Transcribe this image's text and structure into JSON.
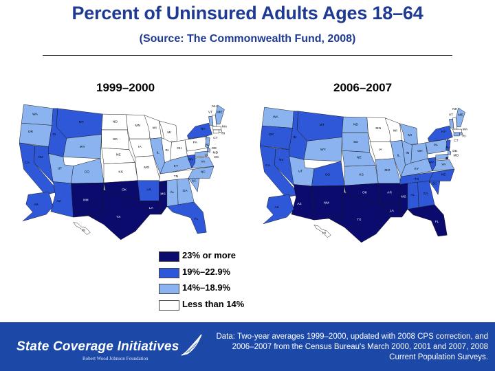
{
  "title": "Percent of Uninsured Adults Ages 18–64",
  "subtitle": "(Source: The Commonwealth Fund, 2008)",
  "periods": [
    {
      "label": "1999–2000"
    },
    {
      "label": "2006–2007"
    }
  ],
  "legend": [
    {
      "label": "23% or more",
      "color": "#0b0b6e"
    },
    {
      "label": "19%–22.9%",
      "color": "#2f58d8"
    },
    {
      "label": "14%–18.9%",
      "color": "#8ab3f0"
    },
    {
      "label": "Less than 14%",
      "color": "#ffffff"
    }
  ],
  "footer": {
    "brand": "State Coverage Initiatives",
    "brand_sub": "Robert Wood Johnson Foundation",
    "note": "Data: Two-year averages 1999–2000, updated with 2008 CPS correction, and 2006–2007 from the Census Bureau's March 2000, 2001 and 2007, 2008 Current Population Surveys."
  },
  "maps": [
    {
      "name": "1999–2000",
      "states": [
        {
          "abbr": "WA",
          "tier": "light"
        },
        {
          "abbr": "OR",
          "tier": "light"
        },
        {
          "abbr": "CA",
          "tier": "mid"
        },
        {
          "abbr": "NV",
          "tier": "mid"
        },
        {
          "abbr": "ID",
          "tier": "mid"
        },
        {
          "abbr": "MT",
          "tier": "mid"
        },
        {
          "abbr": "WY",
          "tier": "light"
        },
        {
          "abbr": "UT",
          "tier": "light"
        },
        {
          "abbr": "CO",
          "tier": "light"
        },
        {
          "abbr": "AZ",
          "tier": "mid"
        },
        {
          "abbr": "NM",
          "tier": "dark"
        },
        {
          "abbr": "ND",
          "tier": "white"
        },
        {
          "abbr": "SD",
          "tier": "white"
        },
        {
          "abbr": "NE",
          "tier": "white"
        },
        {
          "abbr": "KS",
          "tier": "white"
        },
        {
          "abbr": "OK",
          "tier": "dark"
        },
        {
          "abbr": "TX",
          "tier": "dark"
        },
        {
          "abbr": "MN",
          "tier": "white"
        },
        {
          "abbr": "IA",
          "tier": "white"
        },
        {
          "abbr": "MO",
          "tier": "white"
        },
        {
          "abbr": "AR",
          "tier": "mid"
        },
        {
          "abbr": "LA",
          "tier": "dark"
        },
        {
          "abbr": "WI",
          "tier": "white"
        },
        {
          "abbr": "IL",
          "tier": "light"
        },
        {
          "abbr": "MI",
          "tier": "white"
        },
        {
          "abbr": "IN",
          "tier": "white"
        },
        {
          "abbr": "OH",
          "tier": "white"
        },
        {
          "abbr": "KY",
          "tier": "light"
        },
        {
          "abbr": "TN",
          "tier": "white"
        },
        {
          "abbr": "MS",
          "tier": "dark"
        },
        {
          "abbr": "AL",
          "tier": "light"
        },
        {
          "abbr": "GA",
          "tier": "light"
        },
        {
          "abbr": "FL",
          "tier": "mid"
        },
        {
          "abbr": "SC",
          "tier": "light"
        },
        {
          "abbr": "NC",
          "tier": "light"
        },
        {
          "abbr": "VA",
          "tier": "light"
        },
        {
          "abbr": "WV",
          "tier": "mid"
        },
        {
          "abbr": "PA",
          "tier": "white"
        },
        {
          "abbr": "NY",
          "tier": "mid"
        },
        {
          "abbr": "VT",
          "tier": "light"
        },
        {
          "abbr": "NH",
          "tier": "white"
        },
        {
          "abbr": "ME",
          "tier": "light"
        },
        {
          "abbr": "MA",
          "tier": "white"
        },
        {
          "abbr": "RI",
          "tier": "white"
        },
        {
          "abbr": "CT",
          "tier": "white"
        },
        {
          "abbr": "NJ",
          "tier": "light"
        },
        {
          "abbr": "DE",
          "tier": "light"
        },
        {
          "abbr": "MD",
          "tier": "light"
        },
        {
          "abbr": "DC",
          "tier": "light"
        },
        {
          "abbr": "AK",
          "tier": "mid"
        },
        {
          "abbr": "HI",
          "tier": "white"
        }
      ]
    },
    {
      "name": "2006–2007",
      "states": [
        {
          "abbr": "WA",
          "tier": "light"
        },
        {
          "abbr": "OR",
          "tier": "mid"
        },
        {
          "abbr": "CA",
          "tier": "mid"
        },
        {
          "abbr": "NV",
          "tier": "mid"
        },
        {
          "abbr": "ID",
          "tier": "mid"
        },
        {
          "abbr": "MT",
          "tier": "mid"
        },
        {
          "abbr": "WY",
          "tier": "light"
        },
        {
          "abbr": "UT",
          "tier": "light"
        },
        {
          "abbr": "CO",
          "tier": "mid"
        },
        {
          "abbr": "AZ",
          "tier": "dark"
        },
        {
          "abbr": "NM",
          "tier": "dark"
        },
        {
          "abbr": "ND",
          "tier": "light"
        },
        {
          "abbr": "SD",
          "tier": "light"
        },
        {
          "abbr": "NE",
          "tier": "light"
        },
        {
          "abbr": "KS",
          "tier": "light"
        },
        {
          "abbr": "OK",
          "tier": "dark"
        },
        {
          "abbr": "TX",
          "tier": "dark"
        },
        {
          "abbr": "MN",
          "tier": "white"
        },
        {
          "abbr": "IA",
          "tier": "white"
        },
        {
          "abbr": "MO",
          "tier": "light"
        },
        {
          "abbr": "AR",
          "tier": "dark"
        },
        {
          "abbr": "LA",
          "tier": "dark"
        },
        {
          "abbr": "WI",
          "tier": "white"
        },
        {
          "abbr": "IL",
          "tier": "light"
        },
        {
          "abbr": "MI",
          "tier": "light"
        },
        {
          "abbr": "IN",
          "tier": "light"
        },
        {
          "abbr": "OH",
          "tier": "light"
        },
        {
          "abbr": "KY",
          "tier": "light"
        },
        {
          "abbr": "TN",
          "tier": "mid"
        },
        {
          "abbr": "MS",
          "tier": "dark"
        },
        {
          "abbr": "AL",
          "tier": "mid"
        },
        {
          "abbr": "GA",
          "tier": "mid"
        },
        {
          "abbr": "FL",
          "tier": "dark"
        },
        {
          "abbr": "SC",
          "tier": "mid"
        },
        {
          "abbr": "NC",
          "tier": "mid"
        },
        {
          "abbr": "VA",
          "tier": "light"
        },
        {
          "abbr": "WV",
          "tier": "mid"
        },
        {
          "abbr": "PA",
          "tier": "light"
        },
        {
          "abbr": "NY",
          "tier": "mid"
        },
        {
          "abbr": "VT",
          "tier": "light"
        },
        {
          "abbr": "NH",
          "tier": "white"
        },
        {
          "abbr": "ME",
          "tier": "light"
        },
        {
          "abbr": "MA",
          "tier": "white"
        },
        {
          "abbr": "RI",
          "tier": "light"
        },
        {
          "abbr": "CT",
          "tier": "light"
        },
        {
          "abbr": "NJ",
          "tier": "mid"
        },
        {
          "abbr": "DE",
          "tier": "light"
        },
        {
          "abbr": "MD",
          "tier": "light"
        },
        {
          "abbr": "DC",
          "tier": "dark"
        },
        {
          "abbr": "AK",
          "tier": "mid"
        },
        {
          "abbr": "HI",
          "tier": "white"
        }
      ]
    }
  ]
}
